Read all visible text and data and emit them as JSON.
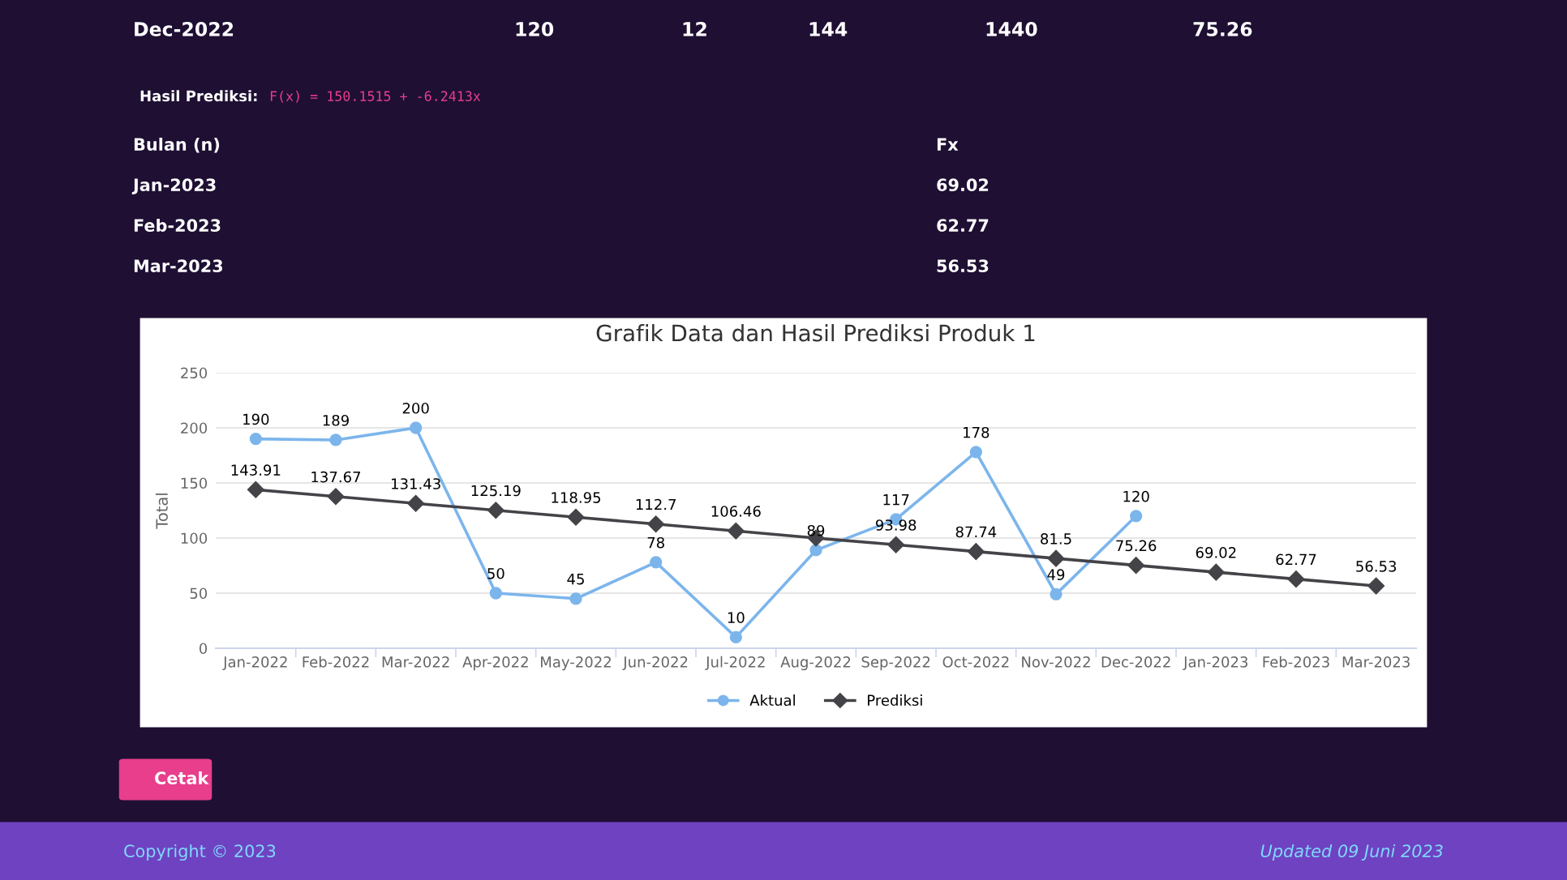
{
  "chart_data": {
    "type": "line",
    "title": "Grafik Data dan Hasil Prediksi Produk 1",
    "ylabel": "Total",
    "categories": [
      "Jan-2022",
      "Feb-2022",
      "Mar-2022",
      "Apr-2022",
      "May-2022",
      "Jun-2022",
      "Jul-2022",
      "Aug-2022",
      "Sep-2022",
      "Oct-2022",
      "Nov-2022",
      "Dec-2022",
      "Jan-2023",
      "Feb-2023",
      "Mar-2023"
    ],
    "series": [
      {
        "name": "Aktual",
        "color": "#7cb5ec",
        "marker": "circle",
        "values": [
          190,
          189,
          200,
          50,
          45,
          78,
          10,
          89,
          117,
          178,
          49,
          120,
          null,
          null,
          null
        ],
        "value_labels": [
          "190",
          "189",
          "200",
          "50",
          "45",
          "78",
          "10",
          "89",
          "117",
          "178",
          "49",
          "120",
          null,
          null,
          null
        ]
      },
      {
        "name": "Prediksi",
        "color": "#434348",
        "marker": "diamond",
        "values": [
          143.91,
          137.67,
          131.43,
          125.19,
          118.95,
          112.7,
          106.46,
          100,
          93.98,
          87.74,
          81.5,
          75.26,
          69.02,
          62.77,
          56.53
        ],
        "value_labels": [
          "143.91",
          "137.67",
          "131.43",
          "125.19",
          "118.95",
          "112.7",
          "106.46",
          null,
          "93.98",
          "87.74",
          "81.5",
          "75.26",
          "69.02",
          "62.77",
          "56.53"
        ]
      }
    ],
    "ylim": [
      0,
      250
    ],
    "yticks": [
      0,
      50,
      100,
      150,
      200,
      250
    ],
    "grid": "y",
    "legend": "bottom",
    "line_style": "solid",
    "annotations": [
      "Dec-2022",
      "120",
      "12",
      "144",
      "1440",
      "75.26",
      "Hasil Prediksi:",
      "F(x) = 150.1515 + -6.2413x",
      "Bulan (n)",
      "Fx",
      "Jan-2023",
      "69.02",
      "Feb-2023",
      "62.77",
      "Mar-2023",
      "56.53",
      "Cetak",
      "Copyright © 2023",
      "Updated 09 Juni 2023"
    ]
  }
}
